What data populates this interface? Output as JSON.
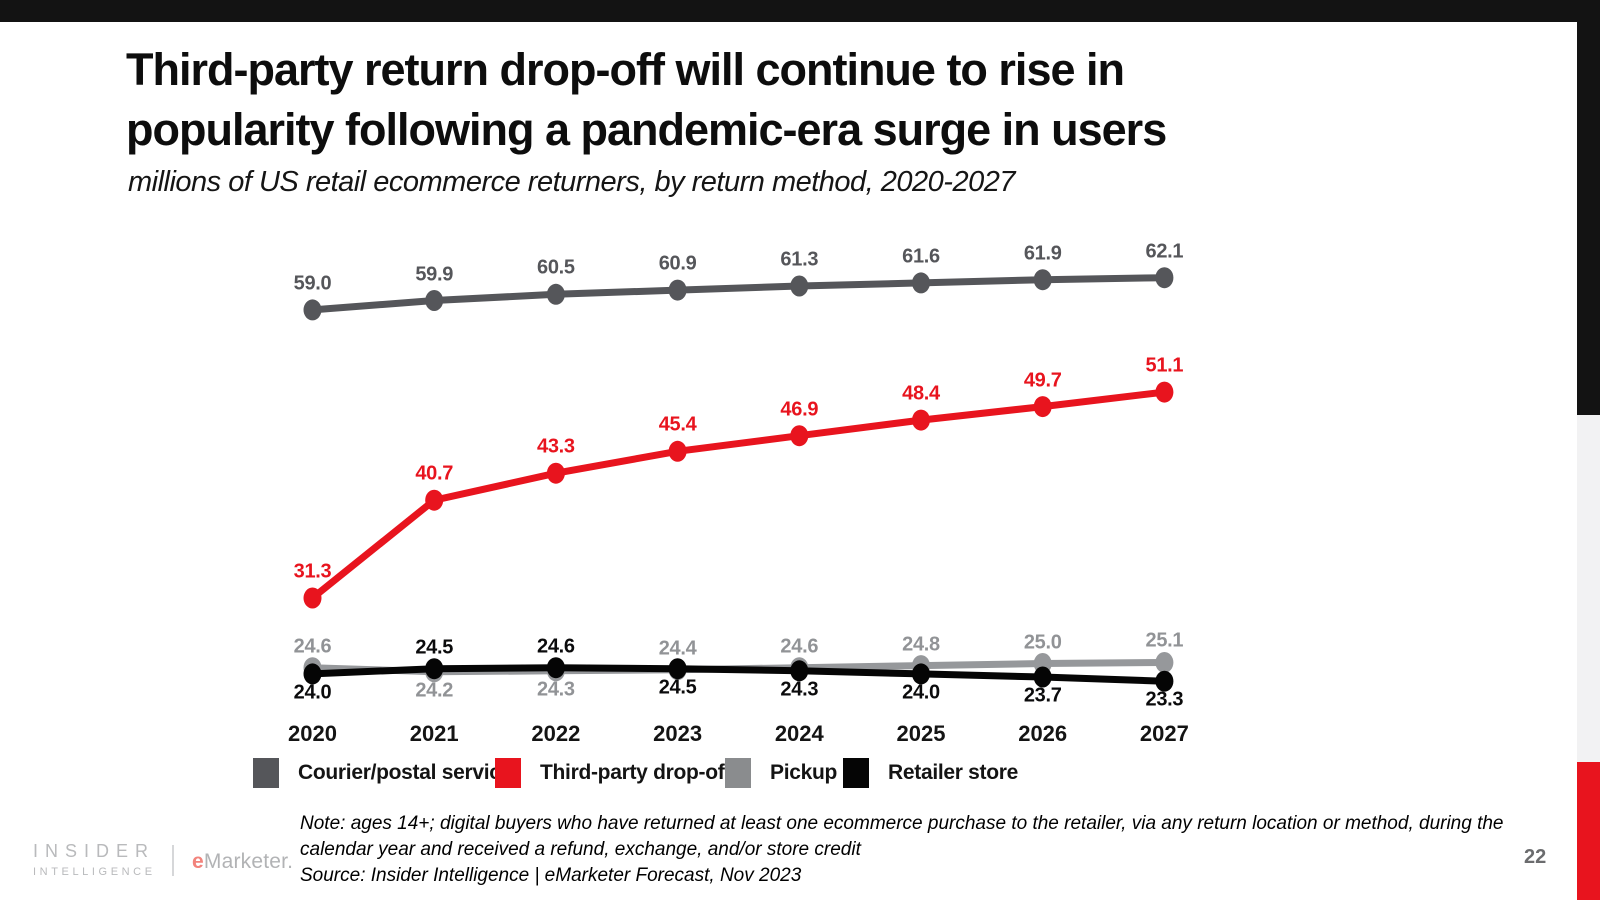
{
  "slide": {
    "title_line1": "Third-party return drop-off will continue to rise in",
    "title_line2": "popularity following a pandemic-era surge in users",
    "subtitle": "millions of US retail ecommerce returners, by return method, 2020-2027",
    "page_number": "22"
  },
  "footnote": {
    "note_line1": "Note: ages 14+; digital buyers who have returned at least one ecommerce purchase to the retailer, via any return location or method, during the",
    "note_line2": "calendar year and received a refund, exchange, and/or store credit",
    "source": "Source: Insider Intelligence | eMarketer Forecast, Nov 2023"
  },
  "branding": {
    "logo_top": "INSIDER",
    "logo_bottom": "INTELLIGENCE",
    "emarketer_e": "e",
    "emarketer_rest": "Marketer."
  },
  "colors": {
    "top_bar": "#131313",
    "rail_black": "#131313",
    "rail_gray": "#F2F2F3",
    "rail_red": "#E8141E",
    "accent_red": "#E8141E",
    "dark_gray": "#55565A",
    "medium_gray": "#96989B",
    "black": "#050505"
  },
  "chart_data": {
    "type": "line",
    "title": "millions of US retail ecommerce returners, by return method, 2020-2027",
    "categories": [
      "2020",
      "2021",
      "2022",
      "2023",
      "2024",
      "2025",
      "2026",
      "2027"
    ],
    "series": [
      {
        "name": "Courier/postal service",
        "color": "#55565A",
        "legend_color": "#55565A",
        "label_color": "#55565A",
        "values": [
          59.0,
          59.9,
          60.5,
          60.9,
          61.3,
          61.6,
          61.9,
          62.1
        ],
        "label_side": [
          "above",
          "above",
          "above",
          "above",
          "above",
          "above",
          "above",
          "above"
        ]
      },
      {
        "name": "Third-party drop-off",
        "color": "#E8141E",
        "legend_color": "#E8141E",
        "label_color": "#E8141E",
        "values": [
          31.3,
          40.7,
          43.3,
          45.4,
          46.9,
          48.4,
          49.7,
          51.1
        ],
        "label_side": [
          "above",
          "above",
          "above",
          "above",
          "above",
          "above",
          "above",
          "above"
        ]
      },
      {
        "name": "Pickup",
        "color": "#96989B",
        "legend_color": "#8A8C8E",
        "label_color": "#919396",
        "values": [
          24.6,
          24.2,
          24.3,
          24.4,
          24.6,
          24.8,
          25.0,
          25.1
        ],
        "label_side": [
          "above",
          "below",
          "below",
          "above",
          "above",
          "above",
          "above",
          "above"
        ]
      },
      {
        "name": "Retailer store",
        "color": "#050505",
        "legend_color": "#050505",
        "label_color": "#0b0b0c",
        "values": [
          24.0,
          24.5,
          24.6,
          24.5,
          24.3,
          24.0,
          23.7,
          23.3
        ],
        "label_side": [
          "below",
          "above",
          "above",
          "below",
          "below",
          "below",
          "below",
          "below"
        ]
      }
    ],
    "data_labels": true,
    "markers": true,
    "grid": false,
    "y_axis_visible": false,
    "legend_position": "bottom",
    "ylim": [
      20,
      65
    ]
  }
}
